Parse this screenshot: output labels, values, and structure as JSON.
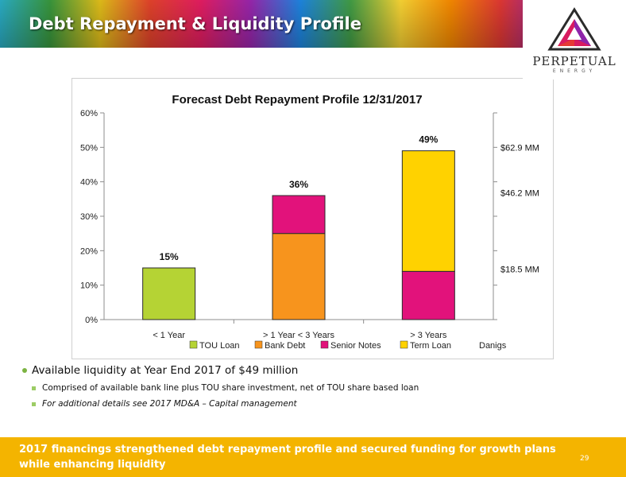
{
  "slide": {
    "title": "Debt Repayment & Liquidity Profile",
    "page_number": "29",
    "footer": "2017 financings strengthened debt repayment profile and secured funding for growth plans while enhancing liquidity"
  },
  "logo": {
    "name": "PERPETUAL",
    "sub": "ENERGY"
  },
  "bullets": {
    "main": "Available liquidity at Year End 2017 of $49 million",
    "sub": [
      "Comprised of available bank line plus TOU share investment, net of TOU share based loan",
      "For additional details see 2017 MD&A – Capital management"
    ]
  },
  "colors": {
    "tou_loan": "#b5d334",
    "bank_debt": "#f7941d",
    "senior_notes": "#e2127b",
    "term_loan": "#ffd200",
    "footer": "#f4b400"
  },
  "chart_data": {
    "type": "bar",
    "stacked": true,
    "title": "Forecast Debt Repayment Profile 12/31/2017",
    "categories": [
      "< 1 Year",
      "> 1 Year < 3 Years",
      "> 3 Years"
    ],
    "series": [
      {
        "name": "TOU Loan",
        "values": [
          15,
          0,
          0
        ]
      },
      {
        "name": "Bank Debt",
        "values": [
          0,
          25,
          0
        ]
      },
      {
        "name": "Senior Notes",
        "values": [
          0,
          11,
          14
        ]
      },
      {
        "name": "Term Loan",
        "values": [
          0,
          0,
          35
        ]
      }
    ],
    "totals": [
      "15%",
      "36%",
      "49%"
    ],
    "ylim": [
      0,
      60
    ],
    "yticks": [
      "0%",
      "10%",
      "20%",
      "30%",
      "40%",
      "50%",
      "60%"
    ],
    "legend_extra": "Danigs",
    "legend_position": "bottom",
    "secondary_axis_labels": [
      {
        "text": "$62.9 MM",
        "value": 50
      },
      {
        "text": "$46.2 MM",
        "value": 36.8
      },
      {
        "text": "$18.5 MM",
        "value": 14.7
      }
    ]
  }
}
